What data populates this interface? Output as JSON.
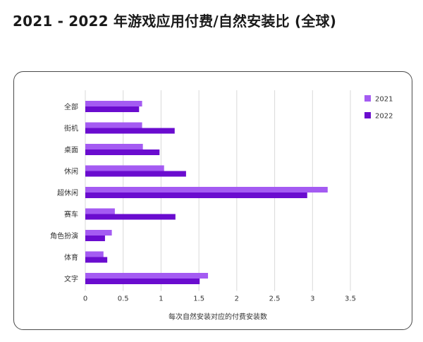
{
  "page": {
    "title": "2021 - 2022 年游戏应用付费/自然安装比 (全球)"
  },
  "colors": {
    "series_2021": "#a45bf2",
    "series_2022": "#6a0ccf",
    "grid": "#d9d9d9",
    "card_border": "#4a4a4a"
  },
  "chart_data": {
    "type": "bar",
    "orientation": "horizontal",
    "title": "2021 - 2022 年游戏应用付费/自然安装比 (全球)",
    "categories": [
      "全部",
      "街机",
      "桌面",
      "休闲",
      "超休闲",
      "赛车",
      "角色扮演",
      "体育",
      "文字"
    ],
    "series": [
      {
        "name": "2021",
        "values": [
          0.75,
          0.75,
          0.76,
          1.04,
          3.2,
          0.39,
          0.35,
          0.24,
          1.62
        ]
      },
      {
        "name": "2022",
        "values": [
          0.71,
          1.18,
          0.98,
          1.33,
          2.93,
          1.19,
          0.26,
          0.29,
          1.51
        ]
      }
    ],
    "xlabel": "每次自然安装对应的付费安装数",
    "ylabel": "",
    "xlim": [
      0,
      3.5
    ],
    "x_ticks": [
      "0",
      "0.5",
      "1",
      "1.5",
      "2",
      "2.5",
      "3",
      "3.5"
    ],
    "grid": "vertical",
    "legend_position": "top-right"
  }
}
